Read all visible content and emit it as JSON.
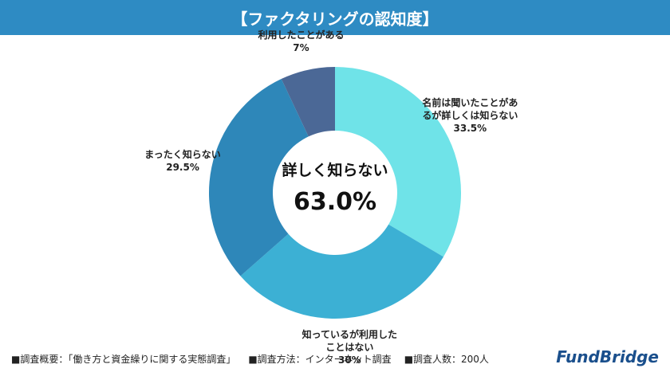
{
  "chart_data": {
    "type": "donut",
    "title": "【ファクタリングの認知度】",
    "categories": [
      "名前は聞いたことがあるが詳しくは知らない",
      "知っているが利用したことはない",
      "まったく知らない",
      "利用したことがある"
    ],
    "values": [
      33.5,
      30,
      29.5,
      7
    ],
    "value_labels": [
      "33.5%",
      "30%",
      "29.5%",
      "7%"
    ],
    "colors": [
      "#6fe3e8",
      "#3cb0d4",
      "#2e87b9",
      "#4b6896"
    ],
    "center_title": "詳しく知らない",
    "center_value": "63.0%",
    "notes": [
      "■調査概要：「働き方と資金繰りに関する実態調査」",
      "■調査方法：インターネット調査",
      "■調査人数：200人"
    ],
    "logo": "FundBridge"
  }
}
